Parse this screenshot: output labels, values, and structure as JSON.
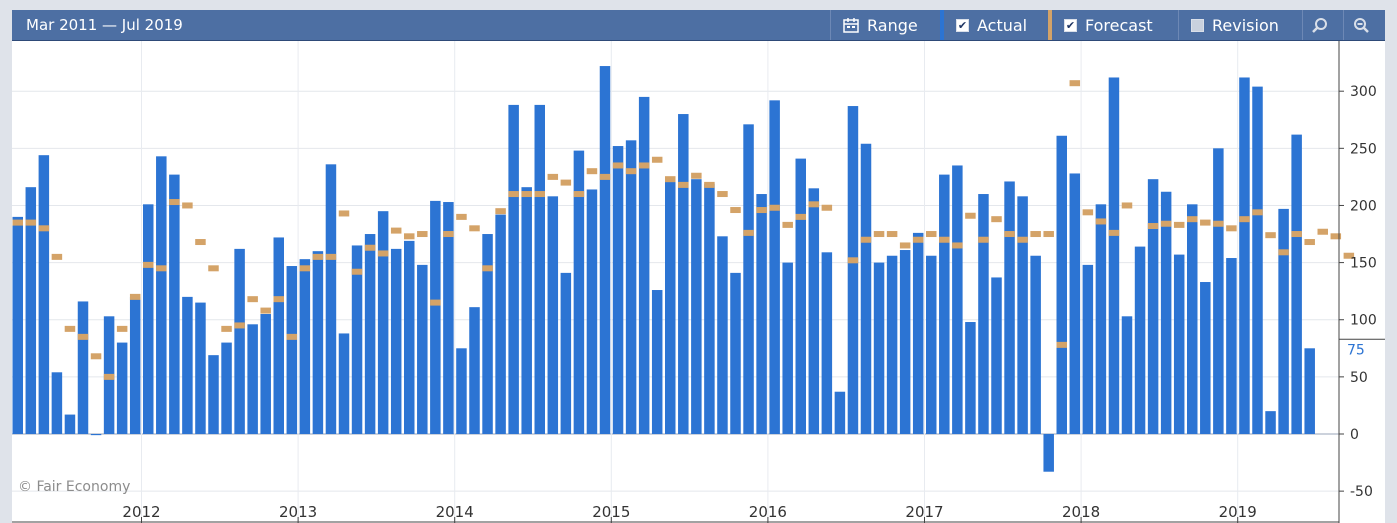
{
  "toolbar": {
    "date_range": "Mar 2011 — Jul 2019",
    "range_label": "Range",
    "actual_label": "Actual",
    "actual_checked": true,
    "forecast_label": "Forecast",
    "forecast_checked": true,
    "revision_label": "Revision",
    "revision_checked": false,
    "zoom_in_icon": "magnifier-icon",
    "zoom_out_icon": "zoom-out-icon",
    "range_icon": "calendar-icon",
    "bar_color": "#4d6fa3"
  },
  "copyright": "© Fair Economy",
  "chart_data": {
    "type": "bar",
    "title": "",
    "xlabel": "",
    "ylabel": "",
    "ylim": [
      -75,
      330
    ],
    "yticks": [
      -50,
      0,
      50,
      100,
      150,
      200,
      250,
      300
    ],
    "x_start": "Mar 2011",
    "xtick_labels": [
      "2012",
      "2013",
      "2014",
      "2015",
      "2016",
      "2017",
      "2018",
      "2019"
    ],
    "current_value_label": "75",
    "grid": true,
    "colors": {
      "actual": "#2c74d3",
      "forecast": "#d4a368",
      "current_label": "#2c74d3"
    },
    "series": [
      {
        "name": "Actual",
        "values": [
          190,
          216,
          244,
          54,
          17,
          116,
          -1,
          103,
          80,
          120,
          201,
          243,
          227,
          120,
          115,
          69,
          80,
          162,
          96,
          105,
          172,
          147,
          153,
          160,
          236,
          88,
          165,
          175,
          195,
          162,
          169,
          148,
          204,
          203,
          75,
          111,
          175,
          192,
          288,
          216,
          288,
          208,
          141,
          248,
          214,
          322,
          252,
          257,
          295,
          126,
          223,
          280,
          223,
          219,
          173,
          141,
          271,
          210,
          292,
          150,
          241,
          215,
          159,
          37,
          287,
          254,
          150,
          156,
          161,
          176,
          156,
          227,
          235,
          98,
          210,
          137,
          221,
          208,
          156,
          -33,
          261,
          228,
          148,
          201,
          312,
          103,
          164,
          223,
          212,
          157,
          201,
          133,
          250,
          154,
          312,
          304,
          20,
          197,
          262,
          75
        ],
        "forecast": [
          185,
          185,
          180,
          155,
          92,
          85,
          68,
          50,
          92,
          120,
          148,
          145,
          203,
          200,
          168,
          145,
          92,
          95,
          118,
          108,
          118,
          85,
          145,
          155,
          155,
          193,
          142,
          163,
          158,
          178,
          173,
          175,
          115,
          175,
          190,
          180,
          145,
          195,
          210,
          210,
          210,
          225,
          220,
          210,
          230,
          225,
          235,
          230,
          235,
          240,
          223,
          218,
          226,
          218,
          210,
          196,
          176,
          196,
          198,
          183,
          190,
          201,
          198,
          null,
          152,
          170,
          175,
          175,
          165,
          170,
          175,
          170,
          165,
          191,
          170,
          188,
          175,
          170,
          175,
          175,
          78,
          307,
          194,
          186,
          176,
          200,
          null,
          182,
          184,
          183,
          188,
          185,
          184,
          180,
          188,
          194,
          174,
          159,
          175,
          168,
          177,
          173,
          156
        ]
      }
    ]
  }
}
